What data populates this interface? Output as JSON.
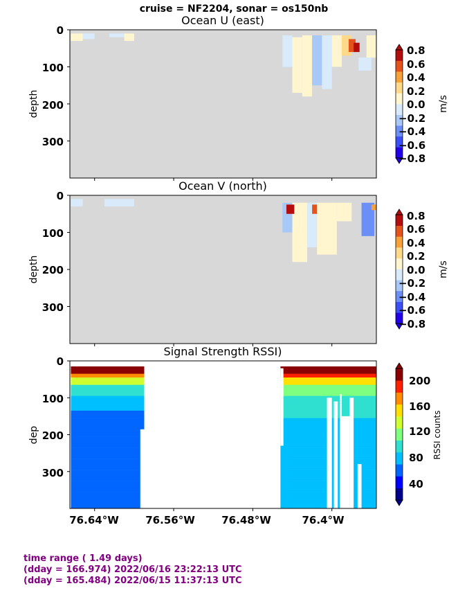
{
  "suptitle": "cruise = NF2204,  sonar = os150nb",
  "footer": {
    "line1": "time range ( 1.49 days)",
    "line2": "(dday = 166.974) 2022/06/16 23:22:13 UTC",
    "line3": "(dday = 165.484) 2022/06/15 11:37:13 UTC"
  },
  "colors": {
    "nodata": "#d8d8d8",
    "footer": "#800080"
  },
  "chart_data": [
    {
      "type": "heatmap",
      "title": "Ocean U (east)",
      "ylabel": "depth",
      "yticks": [
        "0",
        "100",
        "200",
        "300"
      ],
      "ylim": [
        400,
        0
      ],
      "xlim": [
        -76.665,
        -76.355
      ],
      "colorbar": {
        "label": "m/s",
        "ticks": [
          "0.8",
          "0.6",
          "0.4",
          "0.2",
          "0.0",
          "−0.2",
          "−0.4",
          "−0.6",
          "−0.8"
        ],
        "range": [
          -0.9,
          0.9
        ],
        "colors": [
          "#2200e8",
          "#3a4ff6",
          "#6b8ff7",
          "#a8c8f7",
          "#d9ebfb",
          "#fff5cf",
          "#ffd98a",
          "#f6a13a",
          "#e5531d",
          "#b30d0d"
        ]
      },
      "blocks": [
        {
          "lon": [
            -76.664,
            -76.652
          ],
          "depth": [
            10,
            30
          ],
          "value": 0.1
        },
        {
          "lon": [
            -76.652,
            -76.64
          ],
          "depth": [
            10,
            25
          ],
          "value": -0.1
        },
        {
          "lon": [
            -76.625,
            -76.61
          ],
          "depth": [
            10,
            20
          ],
          "value": -0.1
        },
        {
          "lon": [
            -76.61,
            -76.6
          ],
          "depth": [
            10,
            30
          ],
          "value": 0.1
        },
        {
          "lon": [
            -76.45,
            -76.44
          ],
          "depth": [
            15,
            100
          ],
          "value": -0.1
        },
        {
          "lon": [
            -76.44,
            -76.43
          ],
          "depth": [
            20,
            170
          ],
          "value": 0.1
        },
        {
          "lon": [
            -76.43,
            -76.42
          ],
          "depth": [
            15,
            180
          ],
          "value": 0.15
        },
        {
          "lon": [
            -76.42,
            -76.41
          ],
          "depth": [
            15,
            150
          ],
          "value": -0.3
        },
        {
          "lon": [
            -76.41,
            -76.4
          ],
          "depth": [
            15,
            160
          ],
          "value": -0.15
        },
        {
          "lon": [
            -76.4,
            -76.39
          ],
          "depth": [
            15,
            100
          ],
          "value": 0.1
        },
        {
          "lon": [
            -76.39,
            -76.38
          ],
          "depth": [
            15,
            70
          ],
          "value": 0.3
        },
        {
          "lon": [
            -76.383,
            -76.376
          ],
          "depth": [
            25,
            60
          ],
          "value": 0.7
        },
        {
          "lon": [
            -76.378,
            -76.372
          ],
          "depth": [
            35,
            60
          ],
          "value": 0.85
        },
        {
          "lon": [
            -76.365,
            -76.355
          ],
          "depth": [
            15,
            75
          ],
          "value": 0.1
        },
        {
          "lon": [
            -76.373,
            -76.36
          ],
          "depth": [
            75,
            110
          ],
          "value": -0.1
        }
      ]
    },
    {
      "type": "heatmap",
      "title": "Ocean V (north)",
      "ylabel": "depth",
      "yticks": [
        "0",
        "100",
        "200",
        "300"
      ],
      "ylim": [
        400,
        0
      ],
      "xlim": [
        -76.665,
        -76.355
      ],
      "colorbar": {
        "label": "m/s",
        "ticks": [
          "0.8",
          "0.6",
          "0.4",
          "0.2",
          "0.0",
          "−0.2",
          "−0.4",
          "−0.6",
          "−0.8"
        ],
        "range": [
          -0.9,
          0.9
        ],
        "colors": [
          "#2200e8",
          "#3a4ff6",
          "#6b8ff7",
          "#a8c8f7",
          "#d9ebfb",
          "#fff5cf",
          "#ffd98a",
          "#f6a13a",
          "#e5531d",
          "#b30d0d"
        ]
      },
      "blocks": [
        {
          "lon": [
            -76.664,
            -76.652
          ],
          "depth": [
            10,
            30
          ],
          "value": -0.15
        },
        {
          "lon": [
            -76.63,
            -76.6
          ],
          "depth": [
            10,
            30
          ],
          "value": -0.1
        },
        {
          "lon": [
            -76.45,
            -76.44
          ],
          "depth": [
            20,
            100
          ],
          "value": -0.2
        },
        {
          "lon": [
            -76.44,
            -76.425
          ],
          "depth": [
            20,
            180
          ],
          "value": 0.1
        },
        {
          "lon": [
            -76.446,
            -76.438
          ],
          "depth": [
            25,
            50
          ],
          "value": 0.8
        },
        {
          "lon": [
            -76.425,
            -76.415
          ],
          "depth": [
            20,
            140
          ],
          "value": -0.15
        },
        {
          "lon": [
            -76.42,
            -76.412
          ],
          "depth": [
            25,
            50
          ],
          "value": 0.6
        },
        {
          "lon": [
            -76.415,
            -76.395
          ],
          "depth": [
            20,
            160
          ],
          "value": 0.1
        },
        {
          "lon": [
            -76.395,
            -76.38
          ],
          "depth": [
            20,
            70
          ],
          "value": 0.05
        },
        {
          "lon": [
            -76.37,
            -76.357
          ],
          "depth": [
            20,
            110
          ],
          "value": -0.5
        },
        {
          "lon": [
            -76.36,
            -76.355
          ],
          "depth": [
            25,
            40
          ],
          "value": 0.5
        }
      ]
    },
    {
      "type": "heatmap",
      "title": "Signal Strength RSSI)",
      "ylabel": "dep",
      "yticks": [
        "0",
        "100",
        "200",
        "300"
      ],
      "ylim": [
        400,
        0
      ],
      "xlim": [
        -76.665,
        -76.355
      ],
      "xticks": [
        "76.64°W",
        "76.56°W",
        "76.48°W",
        "76.4°W"
      ],
      "xtick_values": [
        -76.64,
        -76.56,
        -76.48,
        -76.4
      ],
      "colorbar": {
        "label": "RSSI counts",
        "ticks": [
          "200",
          "160",
          "120",
          "80",
          "40"
        ],
        "range": [
          10,
          230
        ],
        "colors": [
          "#00008b",
          "#0000ff",
          "#0066ff",
          "#00bfff",
          "#2fe0d0",
          "#7fff7f",
          "#d0ff30",
          "#ffe000",
          "#ff8c00",
          "#ff2000",
          "#8b0000"
        ]
      },
      "segments": [
        {
          "lon": [
            -76.664,
            -76.594
          ],
          "bottom": 400,
          "profile": "a"
        },
        {
          "lon": [
            -76.594,
            -76.59
          ],
          "bottom": 185,
          "profile": "a"
        },
        {
          "lon": [
            -76.452,
            -76.448
          ],
          "bottom": 400,
          "profile": "b"
        },
        {
          "lon": [
            -76.448,
            -76.355
          ],
          "bottom": 400,
          "profile": "b"
        }
      ],
      "gaps": [
        {
          "lon": [
            -76.452,
            -76.449
          ],
          "depth": [
            20,
            230
          ]
        },
        {
          "lon": [
            -76.405,
            -76.4
          ],
          "depth": [
            100,
            400
          ]
        },
        {
          "lon": [
            -76.398,
            -76.394
          ],
          "depth": [
            110,
            400
          ]
        },
        {
          "lon": [
            -76.392,
            -76.382
          ],
          "depth": [
            150,
            400
          ]
        },
        {
          "lon": [
            -76.392,
            -76.39
          ],
          "depth": [
            90,
            160
          ]
        },
        {
          "lon": [
            -76.382,
            -76.378
          ],
          "depth": [
            100,
            400
          ]
        },
        {
          "lon": [
            -76.374,
            -76.37
          ],
          "depth": [
            280,
            400
          ]
        }
      ]
    }
  ]
}
